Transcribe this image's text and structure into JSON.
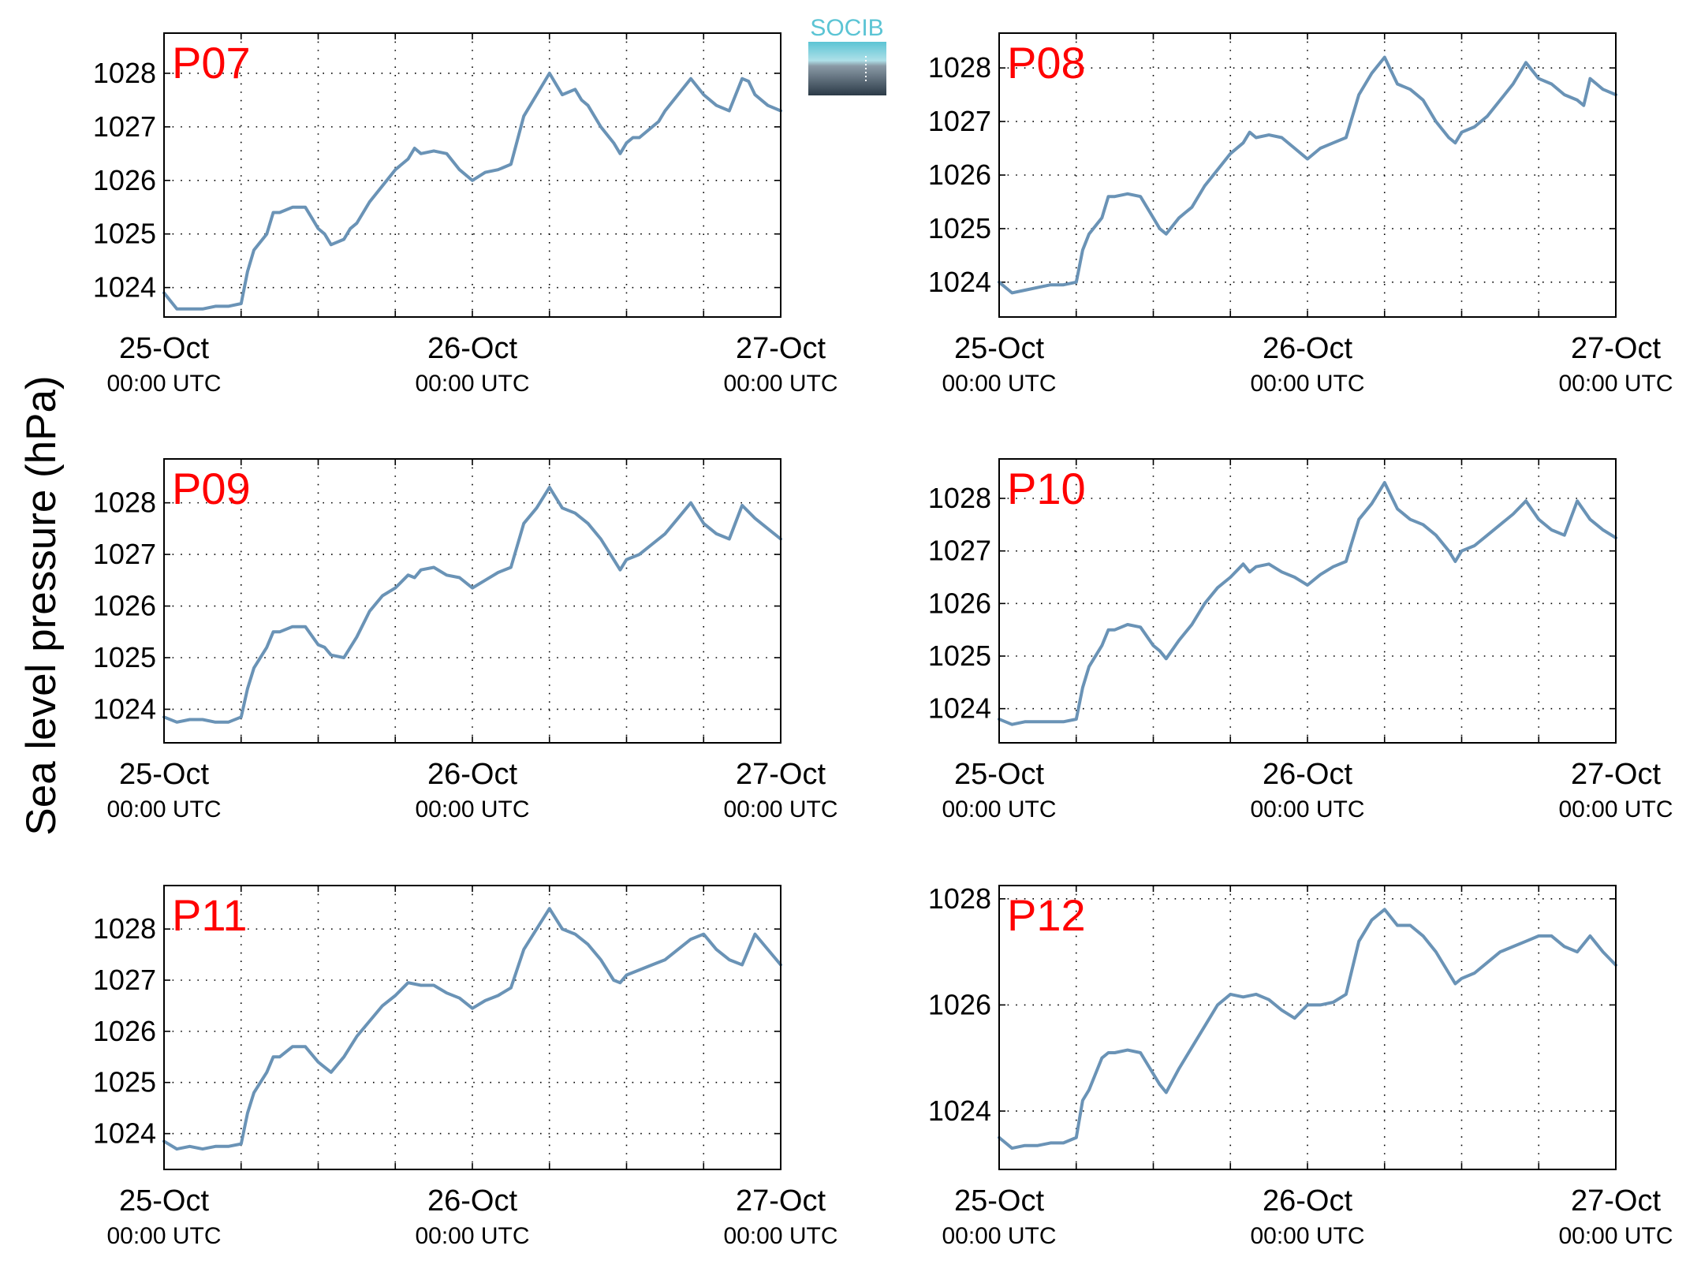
{
  "figure": {
    "ylabel": "Sea level pressure (hPa)",
    "logo_text": "SOCIB",
    "colors": {
      "line": "#6a93b6",
      "panel_label": "#ff0000",
      "axis": "#000000",
      "grid": "#000000",
      "logo_top": "#5bc4d4",
      "logo_bottom": "#2b3a47"
    }
  },
  "chart_data": [
    {
      "type": "line",
      "title": "P07",
      "ylabel": "Sea level pressure (hPa)",
      "ylim": [
        1023.45,
        1028.75
      ],
      "yticks": [
        1024,
        1025,
        1026,
        1027,
        1028
      ],
      "xlim": [
        0,
        48
      ],
      "xticks": [
        0,
        24,
        48
      ],
      "minor_xticks": [
        6,
        12,
        18,
        30,
        36,
        42
      ],
      "xtick_labels": [
        [
          "25-Oct",
          "00:00 UTC"
        ],
        [
          "26-Oct",
          "00:00 UTC"
        ],
        [
          "27-Oct",
          "00:00 UTC"
        ]
      ],
      "grid": true,
      "x": [
        0,
        1,
        2,
        3,
        4,
        5,
        6,
        6.5,
        7,
        8,
        8.5,
        9,
        10,
        11,
        11.5,
        12,
        12.5,
        13,
        14,
        14.5,
        15,
        16,
        17,
        18,
        19,
        19.5,
        20,
        21,
        22,
        23,
        24,
        25,
        26,
        27,
        28,
        29,
        30,
        31,
        32,
        32.5,
        33,
        34,
        35,
        35.5,
        36,
        36.5,
        37,
        38,
        38.5,
        39,
        40,
        41,
        42,
        43,
        44,
        45,
        45.5,
        46,
        46.5,
        47,
        48
      ],
      "values": [
        1023.9,
        1023.6,
        1023.6,
        1023.6,
        1023.65,
        1023.65,
        1023.7,
        1024.3,
        1024.7,
        1025.0,
        1025.4,
        1025.4,
        1025.5,
        1025.5,
        1025.3,
        1025.1,
        1025.0,
        1024.8,
        1024.9,
        1025.1,
        1025.2,
        1025.6,
        1025.9,
        1026.2,
        1026.4,
        1026.6,
        1026.5,
        1026.55,
        1026.5,
        1026.2,
        1026.0,
        1026.15,
        1026.2,
        1026.3,
        1027.2,
        1027.6,
        1028.0,
        1027.6,
        1027.7,
        1027.5,
        1027.4,
        1027.0,
        1026.7,
        1026.5,
        1026.7,
        1026.8,
        1026.8,
        1027.0,
        1027.1,
        1027.3,
        1027.6,
        1027.9,
        1027.6,
        1027.4,
        1027.3,
        1027.9,
        1027.85,
        1027.6,
        1027.5,
        1027.4,
        1027.3
      ]
    },
    {
      "type": "line",
      "title": "P08",
      "ylabel": "Sea level pressure (hPa)",
      "ylim": [
        1023.35,
        1028.65
      ],
      "yticks": [
        1024,
        1025,
        1026,
        1027,
        1028
      ],
      "xlim": [
        0,
        48
      ],
      "xticks": [
        0,
        24,
        48
      ],
      "minor_xticks": [
        6,
        12,
        18,
        30,
        36,
        42
      ],
      "xtick_labels": [
        [
          "25-Oct",
          "00:00 UTC"
        ],
        [
          "26-Oct",
          "00:00 UTC"
        ],
        [
          "27-Oct",
          "00:00 UTC"
        ]
      ],
      "grid": true,
      "x": [
        0,
        1,
        2,
        3,
        4,
        5,
        6,
        6.5,
        7,
        8,
        8.5,
        9,
        10,
        11,
        12,
        12.5,
        13,
        14,
        14.5,
        15,
        16,
        17,
        18,
        19,
        19.5,
        20,
        21,
        22,
        23,
        24,
        25,
        26,
        27,
        28,
        29,
        30,
        31,
        32,
        32.5,
        33,
        34,
        35,
        35.5,
        36,
        37,
        38,
        39,
        40,
        41,
        42,
        43,
        44,
        45,
        45.5,
        46,
        46.5,
        47,
        48
      ],
      "values": [
        1024.0,
        1023.8,
        1023.85,
        1023.9,
        1023.95,
        1023.95,
        1024.0,
        1024.6,
        1024.9,
        1025.2,
        1025.6,
        1025.6,
        1025.65,
        1025.6,
        1025.2,
        1025.0,
        1024.9,
        1025.2,
        1025.3,
        1025.4,
        1025.8,
        1026.1,
        1026.4,
        1026.6,
        1026.8,
        1026.7,
        1026.75,
        1026.7,
        1026.5,
        1026.3,
        1026.5,
        1026.6,
        1026.7,
        1027.5,
        1027.9,
        1028.2,
        1027.7,
        1027.6,
        1027.5,
        1027.4,
        1027.0,
        1026.7,
        1026.6,
        1026.8,
        1026.9,
        1027.1,
        1027.4,
        1027.7,
        1028.1,
        1027.8,
        1027.7,
        1027.5,
        1027.4,
        1027.3,
        1027.8,
        1027.7,
        1027.6,
        1027.5
      ]
    },
    {
      "type": "line",
      "title": "P09",
      "ylabel": "Sea level pressure (hPa)",
      "ylim": [
        1023.35,
        1028.85
      ],
      "yticks": [
        1024,
        1025,
        1026,
        1027,
        1028
      ],
      "xlim": [
        0,
        48
      ],
      "xticks": [
        0,
        24,
        48
      ],
      "minor_xticks": [
        6,
        12,
        18,
        30,
        36,
        42
      ],
      "xtick_labels": [
        [
          "25-Oct",
          "00:00 UTC"
        ],
        [
          "26-Oct",
          "00:00 UTC"
        ],
        [
          "27-Oct",
          "00:00 UTC"
        ]
      ],
      "grid": true,
      "x": [
        0,
        1,
        2,
        3,
        4,
        5,
        6,
        6.5,
        7,
        8,
        8.5,
        9,
        10,
        11,
        12,
        12.5,
        13,
        14,
        15,
        16,
        17,
        18,
        19,
        19.5,
        20,
        21,
        22,
        23,
        24,
        25,
        26,
        27,
        28,
        29,
        30,
        31,
        32,
        33,
        34,
        35,
        35.5,
        36,
        37,
        38,
        39,
        40,
        41,
        42,
        43,
        44,
        45,
        46,
        47,
        48
      ],
      "values": [
        1023.85,
        1023.75,
        1023.8,
        1023.8,
        1023.75,
        1023.75,
        1023.85,
        1024.4,
        1024.8,
        1025.2,
        1025.5,
        1025.5,
        1025.6,
        1025.6,
        1025.25,
        1025.2,
        1025.05,
        1025.0,
        1025.4,
        1025.9,
        1026.2,
        1026.35,
        1026.6,
        1026.55,
        1026.7,
        1026.75,
        1026.6,
        1026.55,
        1026.35,
        1026.5,
        1026.65,
        1026.75,
        1027.6,
        1027.9,
        1028.3,
        1027.9,
        1027.8,
        1027.6,
        1027.3,
        1026.9,
        1026.7,
        1026.9,
        1027.0,
        1027.2,
        1027.4,
        1027.7,
        1028.0,
        1027.6,
        1027.4,
        1027.3,
        1027.95,
        1027.7,
        1027.5,
        1027.3
      ]
    },
    {
      "type": "line",
      "title": "P10",
      "ylabel": "Sea level pressure (hPa)",
      "ylim": [
        1023.35,
        1028.75
      ],
      "yticks": [
        1024,
        1025,
        1026,
        1027,
        1028
      ],
      "xlim": [
        0,
        48
      ],
      "xticks": [
        0,
        24,
        48
      ],
      "minor_xticks": [
        6,
        12,
        18,
        30,
        36,
        42
      ],
      "xtick_labels": [
        [
          "25-Oct",
          "00:00 UTC"
        ],
        [
          "26-Oct",
          "00:00 UTC"
        ],
        [
          "27-Oct",
          "00:00 UTC"
        ]
      ],
      "grid": true,
      "x": [
        0,
        1,
        2,
        3,
        4,
        5,
        6,
        6.5,
        7,
        8,
        8.5,
        9,
        10,
        11,
        12,
        12.5,
        13,
        14,
        15,
        16,
        17,
        18,
        19,
        19.5,
        20,
        21,
        22,
        23,
        24,
        25,
        26,
        27,
        28,
        29,
        30,
        31,
        32,
        33,
        34,
        35,
        35.5,
        36,
        37,
        38,
        39,
        40,
        41,
        42,
        43,
        44,
        45,
        46,
        47,
        48
      ],
      "values": [
        1023.8,
        1023.7,
        1023.75,
        1023.75,
        1023.75,
        1023.75,
        1023.8,
        1024.4,
        1024.8,
        1025.2,
        1025.5,
        1025.5,
        1025.6,
        1025.55,
        1025.2,
        1025.1,
        1024.95,
        1025.3,
        1025.6,
        1026.0,
        1026.3,
        1026.5,
        1026.75,
        1026.6,
        1026.7,
        1026.75,
        1026.6,
        1026.5,
        1026.35,
        1026.55,
        1026.7,
        1026.8,
        1027.6,
        1027.9,
        1028.3,
        1027.8,
        1027.6,
        1027.5,
        1027.3,
        1027.0,
        1026.8,
        1027.0,
        1027.1,
        1027.3,
        1027.5,
        1027.7,
        1027.95,
        1027.6,
        1027.4,
        1027.3,
        1027.95,
        1027.6,
        1027.4,
        1027.25
      ]
    },
    {
      "type": "line",
      "title": "P11",
      "ylabel": "Sea level pressure (hPa)",
      "ylim": [
        1023.3,
        1028.85
      ],
      "yticks": [
        1024,
        1025,
        1026,
        1027,
        1028
      ],
      "xlim": [
        0,
        48
      ],
      "xticks": [
        0,
        24,
        48
      ],
      "minor_xticks": [
        6,
        12,
        18,
        30,
        36,
        42
      ],
      "xtick_labels": [
        [
          "25-Oct",
          "00:00 UTC"
        ],
        [
          "26-Oct",
          "00:00 UTC"
        ],
        [
          "27-Oct",
          "00:00 UTC"
        ]
      ],
      "grid": true,
      "x": [
        0,
        1,
        2,
        3,
        4,
        5,
        6,
        6.5,
        7,
        8,
        8.5,
        9,
        10,
        11,
        12,
        12.5,
        13,
        14,
        15,
        16,
        17,
        18,
        19,
        20,
        21,
        22,
        23,
        24,
        25,
        26,
        27,
        28,
        29,
        30,
        31,
        32,
        33,
        34,
        35,
        35.5,
        36,
        37,
        38,
        39,
        40,
        41,
        42,
        43,
        44,
        45,
        46,
        47,
        48
      ],
      "values": [
        1023.85,
        1023.7,
        1023.75,
        1023.7,
        1023.75,
        1023.75,
        1023.8,
        1024.4,
        1024.8,
        1025.2,
        1025.5,
        1025.5,
        1025.7,
        1025.7,
        1025.4,
        1025.3,
        1025.2,
        1025.5,
        1025.9,
        1026.2,
        1026.5,
        1026.7,
        1026.95,
        1026.9,
        1026.9,
        1026.75,
        1026.65,
        1026.45,
        1026.6,
        1026.7,
        1026.85,
        1027.6,
        1028.0,
        1028.4,
        1028.0,
        1027.9,
        1027.7,
        1027.4,
        1027.0,
        1026.95,
        1027.1,
        1027.2,
        1027.3,
        1027.4,
        1027.6,
        1027.8,
        1027.9,
        1027.6,
        1027.4,
        1027.3,
        1027.9,
        1027.6,
        1027.3
      ]
    },
    {
      "type": "line",
      "title": "P12",
      "ylabel": "Sea level pressure (hPa)",
      "ylim": [
        1022.9,
        1028.25
      ],
      "yticks": [
        1024,
        1026,
        1028
      ],
      "xlim": [
        0,
        48
      ],
      "xticks": [
        0,
        24,
        48
      ],
      "minor_xticks": [
        6,
        12,
        18,
        30,
        36,
        42
      ],
      "xtick_labels": [
        [
          "25-Oct",
          "00:00 UTC"
        ],
        [
          "26-Oct",
          "00:00 UTC"
        ],
        [
          "27-Oct",
          "00:00 UTC"
        ]
      ],
      "grid": true,
      "x": [
        0,
        1,
        2,
        3,
        4,
        5,
        6,
        6.5,
        7,
        8,
        8.5,
        9,
        10,
        11,
        12,
        12.5,
        13,
        14,
        15,
        16,
        17,
        18,
        19,
        20,
        21,
        22,
        23,
        24,
        25,
        26,
        27,
        28,
        29,
        30,
        31,
        32,
        33,
        34,
        35,
        35.5,
        36,
        37,
        38,
        39,
        40,
        41,
        42,
        43,
        44,
        45,
        46,
        47,
        48
      ],
      "values": [
        1023.5,
        1023.3,
        1023.35,
        1023.35,
        1023.4,
        1023.4,
        1023.5,
        1024.2,
        1024.4,
        1025.0,
        1025.1,
        1025.1,
        1025.15,
        1025.1,
        1024.7,
        1024.5,
        1024.35,
        1024.8,
        1025.2,
        1025.6,
        1026.0,
        1026.2,
        1026.15,
        1026.2,
        1026.1,
        1025.9,
        1025.75,
        1026.0,
        1026.0,
        1026.05,
        1026.2,
        1027.2,
        1027.6,
        1027.8,
        1027.5,
        1027.5,
        1027.3,
        1027.0,
        1026.6,
        1026.4,
        1026.5,
        1026.6,
        1026.8,
        1027.0,
        1027.1,
        1027.2,
        1027.3,
        1027.3,
        1027.1,
        1027.0,
        1027.3,
        1027.0,
        1026.75
      ]
    }
  ]
}
